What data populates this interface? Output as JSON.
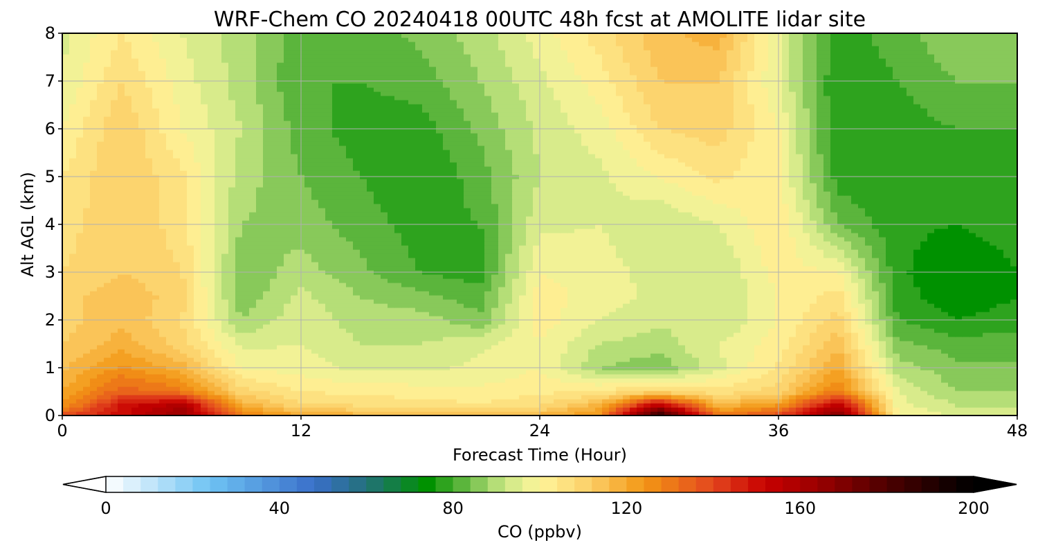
{
  "chart_data": {
    "type": "heatmap",
    "title": "WRF-Chem CO  20240418 00UTC 48h fcst at AMOLITE lidar site",
    "xlabel": "Forecast Time (Hour)",
    "ylabel": "Alt AGL (km)",
    "xlim": [
      0,
      48
    ],
    "ylim": [
      0,
      8
    ],
    "xticks": [
      0,
      12,
      24,
      36,
      48
    ],
    "yticks": [
      0,
      1,
      2,
      3,
      4,
      5,
      6,
      7,
      8
    ],
    "grid": true,
    "x": [
      0,
      3,
      6,
      9,
      12,
      15,
      18,
      21,
      24,
      27,
      30,
      33,
      36,
      39,
      42,
      45,
      48
    ],
    "y": [
      0,
      0.2,
      0.5,
      1,
      1.5,
      2,
      2.5,
      3,
      4,
      5,
      6,
      7,
      8
    ],
    "values": [
      [
        140,
        150,
        165,
        130,
        120,
        118,
        116,
        116,
        118,
        125,
        190,
        130,
        140,
        170,
        100,
        95,
        95
      ],
      [
        125,
        150,
        160,
        120,
        110,
        108,
        106,
        105,
        108,
        118,
        160,
        118,
        125,
        158,
        98,
        92,
        92
      ],
      [
        120,
        135,
        130,
        110,
        104,
        103,
        102,
        101,
        103,
        105,
        110,
        106,
        110,
        130,
        96,
        88,
        88
      ],
      [
        115,
        125,
        118,
        100,
        98,
        95,
        95,
        97,
        100,
        88,
        85,
        95,
        105,
        120,
        90,
        85,
        85
      ],
      [
        112,
        118,
        110,
        95,
        96,
        92,
        92,
        95,
        100,
        92,
        90,
        96,
        102,
        115,
        85,
        82,
        82
      ],
      [
        110,
        115,
        108,
        88,
        95,
        90,
        90,
        85,
        102,
        96,
        93,
        92,
        100,
        110,
        80,
        76,
        78
      ],
      [
        110,
        115,
        110,
        85,
        93,
        88,
        85,
        82,
        102,
        98,
        95,
        92,
        100,
        106,
        78,
        73,
        76
      ],
      [
        108,
        112,
        108,
        85,
        90,
        85,
        80,
        78,
        100,
        98,
        94,
        92,
        102,
        100,
        77,
        72,
        76
      ],
      [
        106,
        112,
        106,
        88,
        86,
        82,
        78,
        80,
        95,
        96,
        92,
        96,
        104,
        84,
        77,
        76,
        78
      ],
      [
        104,
        112,
        105,
        90,
        84,
        80,
        76,
        82,
        92,
        95,
        100,
        105,
        100,
        78,
        77,
        78,
        80
      ],
      [
        100,
        112,
        100,
        92,
        82,
        78,
        78,
        85,
        93,
        98,
        108,
        110,
        100,
        76,
        78,
        80,
        80
      ],
      [
        96,
        108,
        98,
        90,
        80,
        80,
        82,
        88,
        95,
        102,
        112,
        112,
        96,
        76,
        80,
        84,
        84
      ],
      [
        95,
        104,
        96,
        90,
        82,
        82,
        85,
        90,
        98,
        106,
        115,
        118,
        96,
        78,
        82,
        88,
        86
      ]
    ],
    "colorbar": {
      "label": "CO  (ppbv)",
      "min": 0,
      "max": 200,
      "step": 4,
      "ticks": [
        "0",
        "40",
        "80",
        "120",
        "160",
        "200"
      ],
      "extend": "both",
      "color_stops": [
        [
          0,
          "#ffffff"
        ],
        [
          24,
          "#6ec3f3"
        ],
        [
          48,
          "#3a6fc9"
        ],
        [
          60,
          "#23707a"
        ],
        [
          74,
          "#009100"
        ],
        [
          82,
          "#5bb53c"
        ],
        [
          92,
          "#cbe886"
        ],
        [
          100,
          "#fff59b"
        ],
        [
          112,
          "#fbcd65"
        ],
        [
          124,
          "#f39715"
        ],
        [
          140,
          "#e3461e"
        ],
        [
          152,
          "#c70000"
        ],
        [
          164,
          "#9b0000"
        ],
        [
          180,
          "#4d0000"
        ],
        [
          196,
          "#0c0000"
        ],
        [
          200,
          "#000000"
        ]
      ]
    }
  }
}
